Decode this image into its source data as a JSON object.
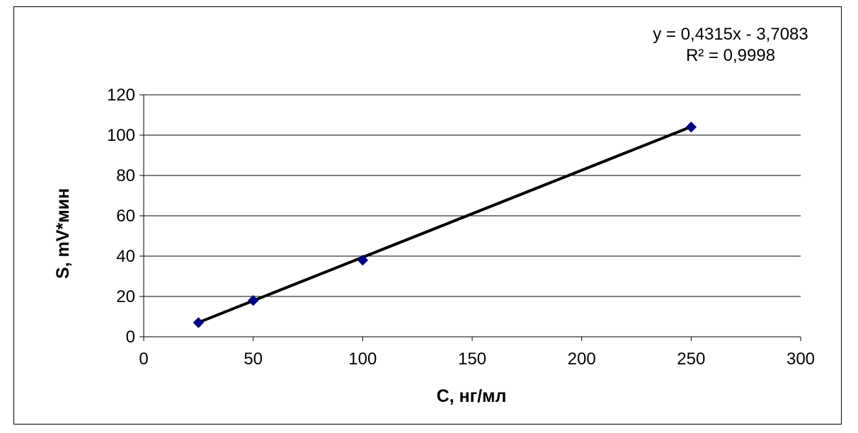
{
  "chart_data": {
    "type": "scatter",
    "title": "",
    "xlabel": "C, нг/мл",
    "ylabel": "S, mV*мин",
    "xlim": [
      0,
      300
    ],
    "ylim": [
      0,
      120
    ],
    "x_ticks": [
      0,
      50,
      100,
      150,
      200,
      250,
      300
    ],
    "y_ticks": [
      0,
      20,
      40,
      60,
      80,
      100,
      120
    ],
    "grid": {
      "horizontal": true,
      "vertical": false
    },
    "legend": "none",
    "series": [
      {
        "x": [
          25,
          50,
          100,
          250
        ],
        "y": [
          7,
          18,
          38,
          104
        ],
        "marker": "diamond",
        "color": "#000080"
      }
    ],
    "trendline": {
      "type": "linear",
      "slope": 0.4315,
      "intercept": -3.7083,
      "x_range": [
        25,
        250
      ],
      "color": "#000000",
      "equation_label": "y = 0,4315x - 3,7083",
      "r2_label": "R² = 0,9998"
    }
  }
}
